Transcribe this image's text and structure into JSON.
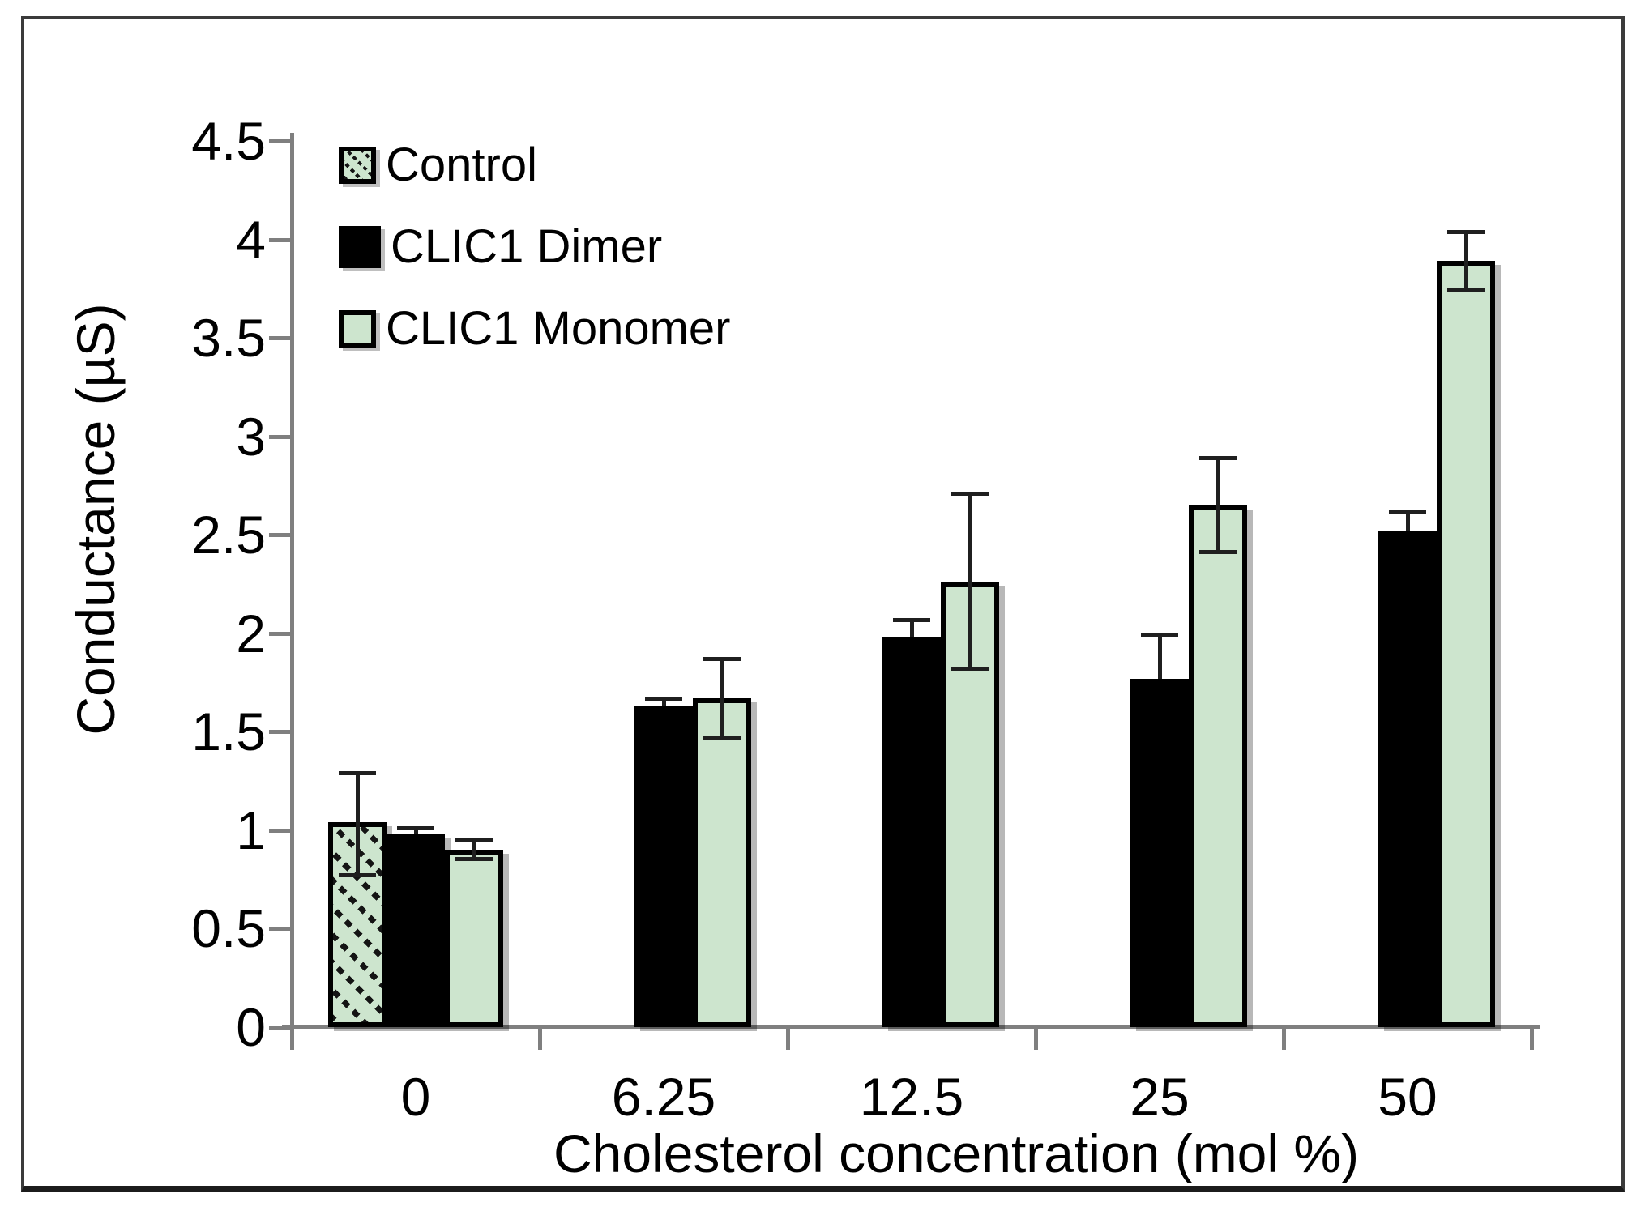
{
  "legend": {
    "items": [
      {
        "label": "Control",
        "swatch": "hatched-green"
      },
      {
        "label": "CLIC1 Dimer",
        "swatch": "solid-black"
      },
      {
        "label": "CLIC1 Monomer",
        "swatch": "light-green"
      }
    ]
  },
  "colors": {
    "bar_green": "#cde5ce",
    "bar_black": "#000000",
    "hatch_black": "#141414",
    "axis_gray": "#7f7f7f",
    "error_bar": "#1f1f1f",
    "frame_border": "#3b3b3b",
    "text": "#000000",
    "background": "#ffffff"
  },
  "chart_data": {
    "type": "bar",
    "title": "",
    "xlabel": "Cholesterol concentration (mol %)",
    "ylabel": "Conductance (µS)",
    "ylim": [
      0,
      4.5
    ],
    "ytick_step": 0.5,
    "yticks": [
      "0",
      "0.5",
      "1",
      "1.5",
      "2",
      "2.5",
      "3",
      "3.5",
      "4",
      "4.5"
    ],
    "categories": [
      "0",
      "6.25",
      "12.5",
      "25",
      "50"
    ],
    "grid": false,
    "legend_position": "top-left-inside",
    "error_bars": true,
    "series": [
      {
        "name": "Control",
        "style": "hatched-green",
        "values": [
          1.04,
          null,
          null,
          null,
          null
        ],
        "err_up": [
          0.25,
          null,
          null,
          null,
          null
        ],
        "err_down": [
          0.27,
          null,
          null,
          null,
          null
        ],
        "caps": "both"
      },
      {
        "name": "CLIC1 Dimer",
        "style": "solid-black",
        "values": [
          0.98,
          1.63,
          1.98,
          1.77,
          2.52
        ],
        "err_up": [
          0.03,
          0.04,
          0.09,
          0.22,
          0.1
        ],
        "err_down": [
          0.03,
          0.04,
          0.09,
          0.22,
          0.1
        ],
        "caps": "top"
      },
      {
        "name": "CLIC1 Monomer",
        "style": "light-green",
        "values": [
          0.9,
          1.67,
          2.26,
          2.65,
          3.89
        ],
        "err_up": [
          0.05,
          0.2,
          0.45,
          0.24,
          0.15
        ],
        "err_down": [
          0.05,
          0.2,
          0.44,
          0.24,
          0.15
        ],
        "caps": "both"
      }
    ]
  }
}
